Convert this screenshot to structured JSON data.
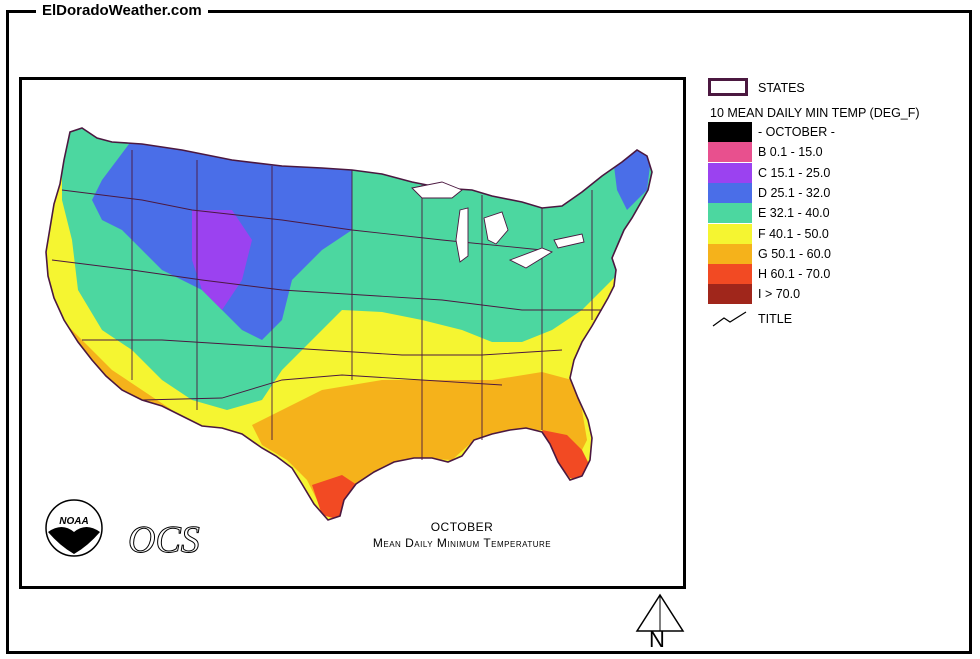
{
  "header": {
    "site_title": "ElDoradoWeather.com"
  },
  "map": {
    "caption_line1": "OCTOBER",
    "caption_line2": "Mean Daily Minimum Temperature",
    "agency_logo_text": "NOAA",
    "office_logo_text": "OCS"
  },
  "legend": {
    "states_label": "STATES",
    "title": "10 MEAN DAILY MIN TEMP (DEG_F)",
    "items": [
      {
        "label": "- OCTOBER -",
        "color": "#000000"
      },
      {
        "label": "B 0.1 - 15.0",
        "color": "#e8508e"
      },
      {
        "label": "C 15.1 - 25.0",
        "color": "#9b42f0"
      },
      {
        "label": "D 25.1 - 32.0",
        "color": "#4a6ee8"
      },
      {
        "label": "E 32.1 - 40.0",
        "color": "#4cd7a0"
      },
      {
        "label": "F 40.1 - 50.0",
        "color": "#f5f531"
      },
      {
        "label": "G 50.1 - 60.0",
        "color": "#f5b21b"
      },
      {
        "label": "H 60.1 - 70.0",
        "color": "#f24a23"
      },
      {
        "label": "I > 70.0",
        "color": "#a0261b"
      }
    ],
    "title_line_label": "TITLE"
  },
  "north_arrow": {
    "label": "N"
  },
  "colors": {
    "state_border": "#4b1840",
    "frame": "#000000"
  }
}
